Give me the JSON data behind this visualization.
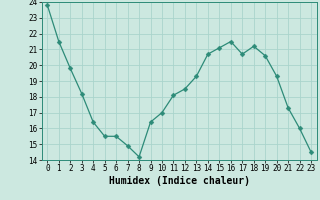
{
  "x": [
    0,
    1,
    2,
    3,
    4,
    5,
    6,
    7,
    8,
    9,
    10,
    11,
    12,
    13,
    14,
    15,
    16,
    17,
    18,
    19,
    20,
    21,
    22,
    23
  ],
  "y": [
    23.8,
    21.5,
    19.8,
    18.2,
    16.4,
    15.5,
    15.5,
    14.9,
    14.2,
    16.4,
    17.0,
    18.1,
    18.5,
    19.3,
    20.7,
    21.1,
    21.5,
    20.7,
    21.2,
    20.6,
    19.3,
    17.3,
    16.0,
    14.5
  ],
  "line_color": "#2d8b78",
  "marker": "D",
  "marker_size": 2.5,
  "bg_color": "#cce8e0",
  "grid_color": "#aad4cc",
  "xlabel": "Humidex (Indice chaleur)",
  "xlim": [
    -0.5,
    23.5
  ],
  "ylim": [
    14,
    24
  ],
  "yticks": [
    14,
    15,
    16,
    17,
    18,
    19,
    20,
    21,
    22,
    23,
    24
  ],
  "xticks": [
    0,
    1,
    2,
    3,
    4,
    5,
    6,
    7,
    8,
    9,
    10,
    11,
    12,
    13,
    14,
    15,
    16,
    17,
    18,
    19,
    20,
    21,
    22,
    23
  ],
  "tick_fontsize": 5.5,
  "xlabel_fontsize": 7.0
}
